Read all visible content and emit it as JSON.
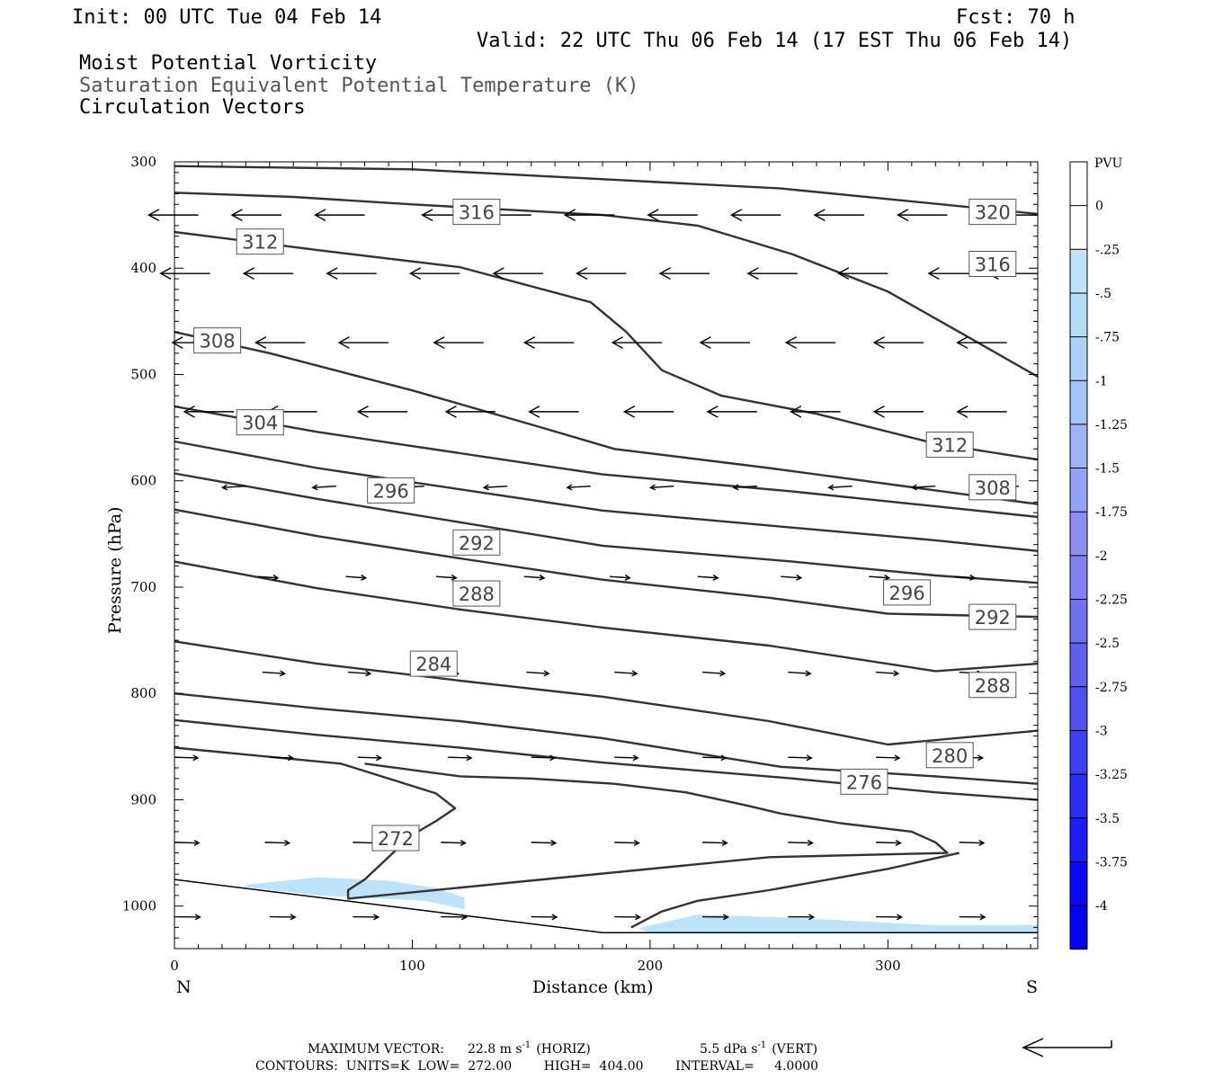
{
  "header": {
    "init": "Init: 00 UTC Tue 04 Feb 14",
    "fcst": "Fcst:   70 h",
    "valid": "Valid: 22 UTC Thu 06 Feb 14 (17 EST Thu 06 Feb 14)",
    "field1": "Moist Potential Vorticity",
    "field2": "Saturation Equivalent Potential Temperature (K)",
    "field3": "Circulation Vectors"
  },
  "chart_data": {
    "type": "line",
    "title": "Moist Potential Vorticity",
    "xlabel": "Distance (km)",
    "ylabel": "Pressure (hPa)",
    "xlim": [
      0,
      363
    ],
    "ylim": [
      1040,
      300
    ],
    "yscale": "linear",
    "x_ticks": [
      0,
      100,
      200,
      300
    ],
    "y_ticks": [
      300,
      400,
      500,
      600,
      700,
      800,
      900,
      1000
    ],
    "x_end_labels": {
      "left": "N",
      "right": "S"
    },
    "contour_units": "K",
    "contour_levels": [
      272,
      276,
      280,
      284,
      288,
      292,
      296,
      300,
      304,
      308,
      312,
      316,
      320
    ],
    "series": [
      {
        "name": "320",
        "points": [
          [
            0,
            304
          ],
          [
            100,
            307
          ],
          [
            255,
            325
          ],
          [
            363,
            349
          ]
        ]
      },
      {
        "name": "316",
        "points": [
          [
            0,
            329
          ],
          [
            50,
            333
          ],
          [
            100,
            340
          ],
          [
            180,
            350
          ],
          [
            220,
            360
          ],
          [
            260,
            387
          ],
          [
            300,
            422
          ],
          [
            330,
            460
          ],
          [
            363,
            502
          ]
        ]
      },
      {
        "name": "312",
        "points": [
          [
            0,
            366
          ],
          [
            60,
            383
          ],
          [
            120,
            399
          ],
          [
            175,
            432
          ],
          [
            190,
            460
          ],
          [
            205,
            496
          ],
          [
            230,
            520
          ],
          [
            270,
            537
          ],
          [
            320,
            565
          ],
          [
            363,
            580
          ]
        ]
      },
      {
        "name": "308",
        "points": [
          [
            0,
            460
          ],
          [
            40,
            480
          ],
          [
            100,
            515
          ],
          [
            150,
            547
          ],
          [
            185,
            570
          ],
          [
            250,
            588
          ],
          [
            320,
            609
          ],
          [
            363,
            622
          ]
        ]
      },
      {
        "name": "304",
        "points": [
          [
            0,
            530
          ],
          [
            60,
            554
          ],
          [
            120,
            574
          ],
          [
            180,
            594
          ],
          [
            260,
            610
          ],
          [
            320,
            624
          ],
          [
            363,
            634
          ]
        ]
      },
      {
        "name": "300",
        "points": [
          [
            0,
            563
          ],
          [
            60,
            588
          ],
          [
            120,
            608
          ],
          [
            180,
            628
          ],
          [
            260,
            644
          ],
          [
            320,
            656
          ],
          [
            363,
            666
          ]
        ]
      },
      {
        "name": "296",
        "points": [
          [
            0,
            593
          ],
          [
            60,
            617
          ],
          [
            120,
            639
          ],
          [
            180,
            661
          ],
          [
            260,
            676
          ],
          [
            320,
            689
          ],
          [
            363,
            696
          ]
        ]
      },
      {
        "name": "292",
        "points": [
          [
            0,
            627
          ],
          [
            60,
            652
          ],
          [
            120,
            673
          ],
          [
            180,
            693
          ],
          [
            250,
            710
          ],
          [
            300,
            725
          ],
          [
            363,
            728
          ]
        ]
      },
      {
        "name": "288",
        "points": [
          [
            0,
            676
          ],
          [
            60,
            701
          ],
          [
            120,
            721
          ],
          [
            180,
            738
          ],
          [
            250,
            755
          ],
          [
            320,
            779
          ],
          [
            363,
            772
          ]
        ]
      },
      {
        "name": "284",
        "points": [
          [
            0,
            751
          ],
          [
            60,
            772
          ],
          [
            120,
            788
          ],
          [
            180,
            803
          ],
          [
            250,
            826
          ],
          [
            300,
            848
          ],
          [
            363,
            835
          ]
        ]
      },
      {
        "name": "280",
        "points": [
          [
            0,
            800
          ],
          [
            60,
            814
          ],
          [
            120,
            826
          ],
          [
            180,
            842
          ],
          [
            255,
            869
          ],
          [
            320,
            878
          ],
          [
            363,
            885
          ]
        ]
      },
      {
        "name": "280b",
        "points": [
          [
            0,
            825
          ],
          [
            60,
            839
          ],
          [
            120,
            851
          ],
          [
            180,
            865
          ],
          [
            260,
            880
          ],
          [
            320,
            893
          ],
          [
            363,
            900
          ]
        ]
      },
      {
        "name": "276",
        "points": [
          [
            0,
            851
          ],
          [
            70,
            866
          ],
          [
            110,
            894
          ],
          [
            118,
            908
          ],
          [
            110,
            920
          ],
          [
            100,
            933
          ],
          [
            90,
            954
          ],
          [
            80,
            975
          ],
          [
            73,
            985
          ],
          [
            73,
            993
          ],
          [
            250,
            954
          ],
          [
            325,
            950
          ],
          [
            320,
            940
          ],
          [
            310,
            930
          ],
          [
            280,
            922
          ],
          [
            255,
            913
          ],
          [
            240,
            905
          ],
          [
            215,
            893
          ],
          [
            185,
            885
          ],
          [
            150,
            880
          ],
          [
            120,
            878
          ],
          [
            80,
            866
          ]
        ]
      },
      {
        "name": "272",
        "points": [
          [
            192,
            1020
          ],
          [
            205,
            1005
          ],
          [
            220,
            995
          ],
          [
            250,
            985
          ],
          [
            300,
            965
          ],
          [
            330,
            950
          ]
        ]
      }
    ],
    "circulation_vectors": [
      {
        "p": 350,
        "x": [
          10,
          45,
          80,
          125,
          150,
          185,
          220,
          255,
          290,
          325,
          363
        ],
        "u": -1,
        "w": 0
      },
      {
        "p": 405,
        "x": [
          15,
          50,
          85,
          120,
          155,
          190,
          225,
          262,
          300,
          338,
          363
        ],
        "u": -1,
        "w": 0
      },
      {
        "p": 470,
        "x": [
          20,
          55,
          90,
          130,
          168,
          205,
          242,
          278,
          315,
          350
        ],
        "u": -1,
        "w": 0
      },
      {
        "p": 535,
        "x": [
          25,
          60,
          98,
          135,
          170,
          210,
          245,
          280,
          315,
          350
        ],
        "u": -1,
        "w": 0
      },
      {
        "p": 605,
        "x": [
          30,
          68,
          105,
          140,
          175,
          210,
          245,
          285,
          320,
          355
        ],
        "u": -0.5,
        "w": 0.2
      },
      {
        "p": 690,
        "x": [
          35,
          72,
          110,
          147,
          183,
          220,
          255,
          292,
          328
        ],
        "u": 0.2,
        "w": 0.2
      },
      {
        "p": 780,
        "x": [
          37,
          73,
          110,
          148,
          185,
          222,
          258,
          295,
          330
        ],
        "u": 0.4,
        "w": 0.2
      },
      {
        "p": 860,
        "x": [
          0,
          40,
          77,
          115,
          150,
          185,
          222,
          258,
          295,
          330
        ],
        "u": 0.5,
        "w": 0.1
      },
      {
        "p": 940,
        "x": [
          0,
          38,
          75,
          112,
          150,
          185,
          222,
          258,
          295,
          330
        ],
        "u": 0.6,
        "w": 0.1
      },
      {
        "p": 1010,
        "x": [
          0,
          40,
          75,
          112,
          150,
          185,
          222,
          258,
          295,
          330
        ],
        "u": 0.7,
        "w": 0.05
      }
    ],
    "mpv_shading": [
      {
        "level": -0.25,
        "color": "#bde3f8",
        "region": "near surface 30-120 km, 975-1000 hPa"
      },
      {
        "level": -0.25,
        "color": "#bde3f8",
        "region": "near surface 195-363 km, 1010-1025 hPa"
      }
    ],
    "surface": [
      [
        0,
        975
      ],
      [
        180,
        1025
      ],
      [
        363,
        1025
      ]
    ],
    "contour_labels": [
      {
        "text": "320",
        "x": 344,
        "p": 347
      },
      {
        "text": "316",
        "x": 127,
        "p": 347
      },
      {
        "text": "316",
        "x": 344,
        "p": 396
      },
      {
        "text": "312",
        "x": 36,
        "p": 375
      },
      {
        "text": "312",
        "x": 326,
        "p": 566
      },
      {
        "text": "308",
        "x": 18,
        "p": 468
      },
      {
        "text": "308",
        "x": 344,
        "p": 606
      },
      {
        "text": "304",
        "x": 36,
        "p": 545
      },
      {
        "text": "296",
        "x": 91,
        "p": 609
      },
      {
        "text": "296",
        "x": 308,
        "p": 705
      },
      {
        "text": "292",
        "x": 127,
        "p": 658
      },
      {
        "text": "292",
        "x": 344,
        "p": 728
      },
      {
        "text": "288",
        "x": 127,
        "p": 706
      },
      {
        "text": "288",
        "x": 344,
        "p": 792
      },
      {
        "text": "284",
        "x": 109,
        "p": 772
      },
      {
        "text": "280",
        "x": 326,
        "p": 858
      },
      {
        "text": "276",
        "x": 290,
        "p": 883
      },
      {
        "text": "272",
        "x": 93,
        "p": 936
      }
    ]
  },
  "colorbar": {
    "unit": "PVU",
    "labels": [
      "0",
      "-.25",
      "-.5",
      "-.75",
      "-1",
      "-1.25",
      "-1.5",
      "-1.75",
      "-2",
      "-2.25",
      "-2.5",
      "-2.75",
      "-3",
      "-3.25",
      "-3.5",
      "-3.75",
      "-4"
    ],
    "colors": [
      "#ffffff",
      "#ffffff",
      "#bde3f8",
      "#b4ddf8",
      "#aad2f8",
      "#a3c4f8",
      "#9cb3f6",
      "#94a2f5",
      "#8b8ff4",
      "#8080f2",
      "#6f70f0",
      "#6060ef",
      "#5050ee",
      "#3f3ff0",
      "#2e2ef2",
      "#1d1df4",
      "#0a0af6",
      "#0000f8"
    ]
  },
  "footer": {
    "line1_left": "MAXIMUM VECTOR:",
    "line1_horiz": "22.8 m s",
    "line1_horiz_tail": "(HORIZ)",
    "line1_vert": "5.5 dPa s",
    "line1_vert_tail": "(VERT)",
    "exp": "-1",
    "line2": "CONTOURS:  UNITS=K  LOW=  272.00        HIGH=  404.00        INTERVAL=     4.0000"
  }
}
